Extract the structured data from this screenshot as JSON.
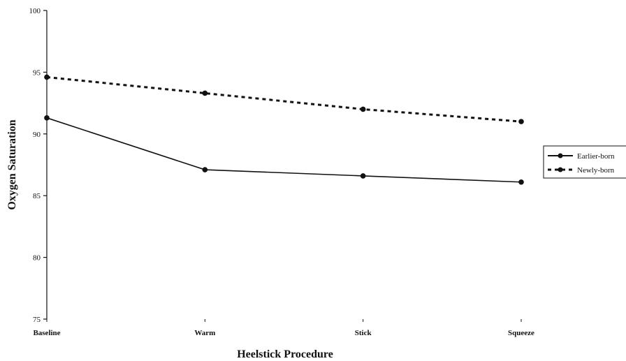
{
  "chart_data": {
    "type": "line",
    "title": "",
    "xlabel": "Heelstick Procedure",
    "ylabel": "Oxygen Saturation",
    "categories": [
      "Baseline",
      "Warm",
      "Stick",
      "Squeeze"
    ],
    "ylim": [
      75,
      100
    ],
    "yticks": [
      75,
      80,
      85,
      90,
      95,
      100
    ],
    "grid": false,
    "legend_position": "right",
    "series": [
      {
        "name": "Earlier-born",
        "values": [
          91.3,
          87.1,
          86.6,
          86.1
        ],
        "line_style": "solid",
        "color": "#111111"
      },
      {
        "name": "Newly-born",
        "values": [
          94.6,
          93.3,
          92.0,
          91.0
        ],
        "line_style": "dashed",
        "color": "#111111"
      }
    ]
  }
}
